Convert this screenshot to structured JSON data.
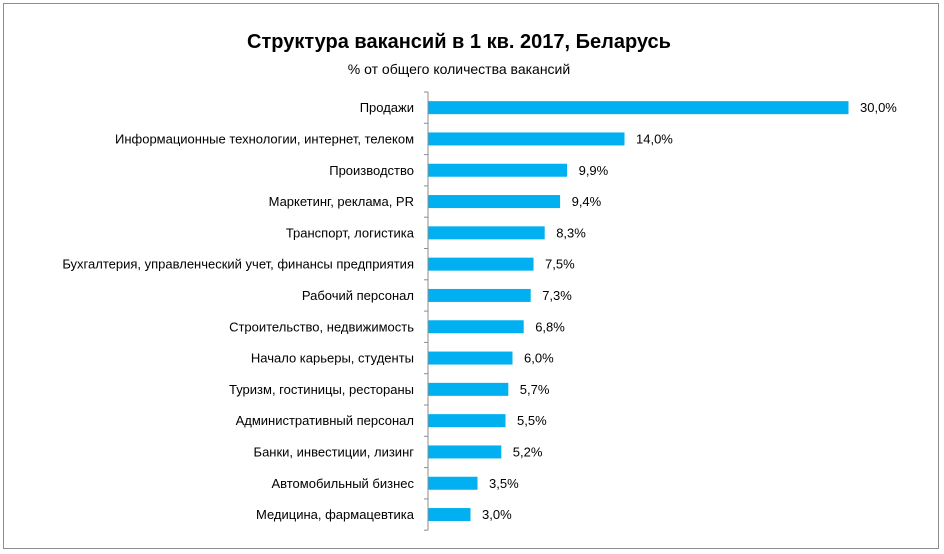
{
  "chart_data": {
    "type": "bar",
    "orientation": "horizontal",
    "title": "Структура вакансий в 1 кв. 2017, Беларусь",
    "subtitle": "% от общего количества вакансий",
    "categories": [
      "Продажи",
      "Информационные технологии, интернет, телеком",
      "Производство",
      "Маркетинг, реклама, PR",
      "Транспорт, логистика",
      "Бухгалтерия, управленческий учет, финансы предприятия",
      "Рабочий персонал",
      "Строительство, недвижимость",
      "Начало карьеры, студенты",
      "Туризм, гостиницы, рестораны",
      "Административный персонал",
      "Банки, инвестиции, лизинг",
      "Автомобильный бизнес",
      "Медицина, фармацевтика"
    ],
    "values": [
      30.0,
      14.0,
      9.9,
      9.4,
      8.3,
      7.5,
      7.3,
      6.8,
      6.0,
      5.7,
      5.5,
      5.2,
      3.5,
      3.0
    ],
    "value_labels": [
      "30,0%",
      "14,0%",
      "9,9%",
      "9,4%",
      "8,3%",
      "7,5%",
      "7,3%",
      "6,8%",
      "6,0%",
      "5,7%",
      "5,5%",
      "5,2%",
      "3,5%",
      "3,0%"
    ],
    "xlim": [
      0,
      30
    ],
    "bar_color": "#00b0f0",
    "axis_color": "#8c8c8c",
    "grid": false,
    "legend": "none"
  }
}
